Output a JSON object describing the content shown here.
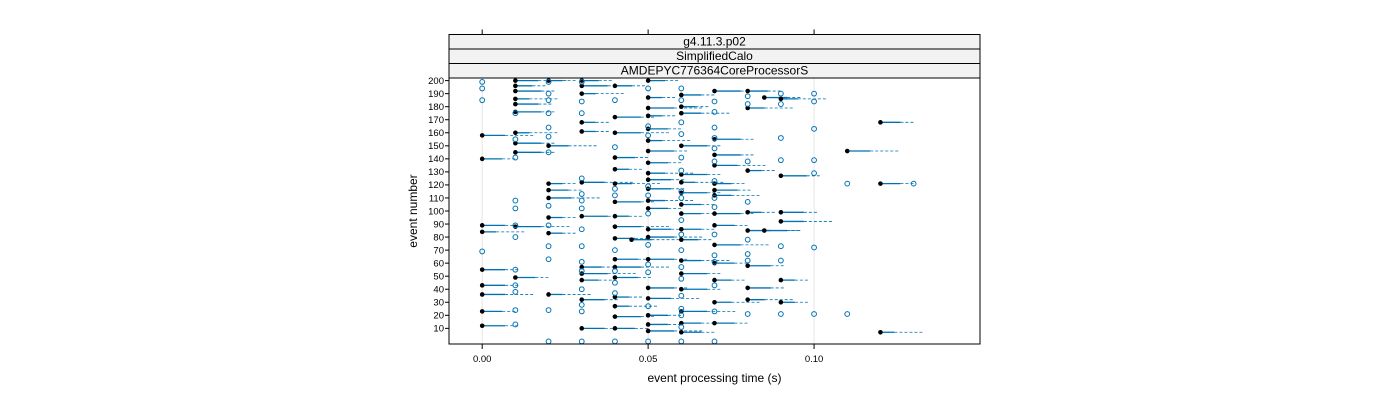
{
  "chart_data": {
    "type": "scatter",
    "strips": [
      "g4.11.3.p02",
      "SimplifiedCalo",
      "AMDEPYC776364CoreProcessorS"
    ],
    "xlabel": "event processing time (s)",
    "ylabel": "event number",
    "xlim": [
      -0.01,
      0.15
    ],
    "ylim": [
      -2,
      202
    ],
    "x_ticks": [
      0.0,
      0.05,
      0.1
    ],
    "x_tick_labels": [
      "0.00",
      "0.05",
      "0.10"
    ],
    "y_ticks": [
      10,
      20,
      30,
      40,
      50,
      60,
      70,
      80,
      90,
      100,
      110,
      120,
      130,
      140,
      150,
      160,
      170,
      180,
      190,
      200
    ],
    "y_tick_labels": [
      "10",
      "20",
      "30",
      "40",
      "50",
      "60",
      "70",
      "80",
      "90",
      "100",
      "110",
      "120",
      "130",
      "140",
      "150",
      "160",
      "170",
      "180",
      "190",
      "200"
    ],
    "grid": true,
    "colors": {
      "series_a": "#000000",
      "series_b": "#0072b2",
      "strip_bg": "#f2f2f2",
      "grid": "#e6e6e6"
    },
    "series": [
      {
        "marker": "filled-circle",
        "color": "#000000",
        "points": [
          [
            0.0,
            158
          ],
          [
            0.0,
            140
          ],
          [
            0.0,
            89
          ],
          [
            0.0,
            84
          ],
          [
            0.0,
            55
          ],
          [
            0.0,
            43
          ],
          [
            0.0,
            36
          ],
          [
            0.0,
            23
          ],
          [
            0.0,
            12
          ],
          [
            0.01,
            200
          ],
          [
            0.01,
            196
          ],
          [
            0.01,
            192
          ],
          [
            0.01,
            186
          ],
          [
            0.01,
            182
          ],
          [
            0.01,
            176
          ],
          [
            0.01,
            160
          ],
          [
            0.01,
            152
          ],
          [
            0.01,
            145
          ],
          [
            0.01,
            88
          ],
          [
            0.01,
            49
          ],
          [
            0.02,
            200
          ],
          [
            0.02,
            150
          ],
          [
            0.02,
            121
          ],
          [
            0.02,
            116
          ],
          [
            0.02,
            110
          ],
          [
            0.02,
            95
          ],
          [
            0.02,
            83
          ],
          [
            0.02,
            36
          ],
          [
            0.03,
            200
          ],
          [
            0.03,
            196
          ],
          [
            0.03,
            190
          ],
          [
            0.03,
            168
          ],
          [
            0.03,
            161
          ],
          [
            0.03,
            122
          ],
          [
            0.03,
            96
          ],
          [
            0.03,
            57
          ],
          [
            0.03,
            52
          ],
          [
            0.03,
            47
          ],
          [
            0.03,
            32
          ],
          [
            0.03,
            10
          ],
          [
            0.04,
            196
          ],
          [
            0.04,
            172
          ],
          [
            0.04,
            160
          ],
          [
            0.04,
            141
          ],
          [
            0.04,
            132
          ],
          [
            0.04,
            121
          ],
          [
            0.04,
            107
          ],
          [
            0.04,
            96
          ],
          [
            0.04,
            88
          ],
          [
            0.04,
            79
          ],
          [
            0.04,
            63
          ],
          [
            0.04,
            57
          ],
          [
            0.04,
            49
          ],
          [
            0.04,
            34
          ],
          [
            0.04,
            27
          ],
          [
            0.04,
            19
          ],
          [
            0.04,
            10
          ],
          [
            0.045,
            78
          ],
          [
            0.05,
            200
          ],
          [
            0.05,
            187
          ],
          [
            0.05,
            179
          ],
          [
            0.05,
            173
          ],
          [
            0.05,
            163
          ],
          [
            0.05,
            154
          ],
          [
            0.05,
            146
          ],
          [
            0.05,
            137
          ],
          [
            0.05,
            129
          ],
          [
            0.05,
            124
          ],
          [
            0.05,
            117
          ],
          [
            0.05,
            108
          ],
          [
            0.05,
            102
          ],
          [
            0.05,
            86
          ],
          [
            0.05,
            80
          ],
          [
            0.05,
            63
          ],
          [
            0.05,
            41
          ],
          [
            0.05,
            33
          ],
          [
            0.05,
            20
          ],
          [
            0.05,
            13
          ],
          [
            0.05,
            8
          ],
          [
            0.06,
            189
          ],
          [
            0.06,
            180
          ],
          [
            0.06,
            175
          ],
          [
            0.06,
            150
          ],
          [
            0.06,
            128
          ],
          [
            0.06,
            122
          ],
          [
            0.06,
            114
          ],
          [
            0.06,
            105
          ],
          [
            0.06,
            98
          ],
          [
            0.06,
            86
          ],
          [
            0.06,
            78
          ],
          [
            0.06,
            62
          ],
          [
            0.06,
            52
          ],
          [
            0.06,
            40
          ],
          [
            0.06,
            23
          ],
          [
            0.06,
            14
          ],
          [
            0.06,
            7
          ],
          [
            0.07,
            192
          ],
          [
            0.07,
            155
          ],
          [
            0.07,
            143
          ],
          [
            0.07,
            135
          ],
          [
            0.07,
            121
          ],
          [
            0.07,
            116
          ],
          [
            0.07,
            112
          ],
          [
            0.07,
            98
          ],
          [
            0.07,
            89
          ],
          [
            0.07,
            74
          ],
          [
            0.07,
            60
          ],
          [
            0.07,
            47
          ],
          [
            0.07,
            30
          ],
          [
            0.07,
            14
          ],
          [
            0.08,
            192
          ],
          [
            0.08,
            179
          ],
          [
            0.08,
            131
          ],
          [
            0.08,
            99
          ],
          [
            0.08,
            85
          ],
          [
            0.08,
            58
          ],
          [
            0.08,
            41
          ],
          [
            0.08,
            32
          ],
          [
            0.085,
            187
          ],
          [
            0.085,
            85
          ],
          [
            0.09,
            186
          ],
          [
            0.09,
            127
          ],
          [
            0.09,
            99
          ],
          [
            0.09,
            92
          ],
          [
            0.09,
            47
          ],
          [
            0.09,
            30
          ],
          [
            0.11,
            146
          ],
          [
            0.12,
            168
          ],
          [
            0.12,
            121
          ],
          [
            0.12,
            7
          ]
        ]
      },
      {
        "marker": "open-circle",
        "color": "#0072b2",
        "points": [
          [
            0.0,
            199
          ],
          [
            0.0,
            194
          ],
          [
            0.0,
            185
          ],
          [
            0.0,
            69
          ],
          [
            0.01,
            175
          ],
          [
            0.01,
            155
          ],
          [
            0.01,
            141
          ],
          [
            0.01,
            108
          ],
          [
            0.01,
            102
          ],
          [
            0.01,
            89
          ],
          [
            0.01,
            80
          ],
          [
            0.01,
            55
          ],
          [
            0.01,
            43
          ],
          [
            0.01,
            38
          ],
          [
            0.01,
            24
          ],
          [
            0.01,
            13
          ],
          [
            0.02,
            199
          ],
          [
            0.02,
            190
          ],
          [
            0.02,
            185
          ],
          [
            0.02,
            175
          ],
          [
            0.02,
            164
          ],
          [
            0.02,
            157
          ],
          [
            0.02,
            145
          ],
          [
            0.02,
            104
          ],
          [
            0.02,
            89
          ],
          [
            0.02,
            73
          ],
          [
            0.02,
            63
          ],
          [
            0.02,
            24
          ],
          [
            0.02,
            0
          ],
          [
            0.03,
            199
          ],
          [
            0.03,
            184
          ],
          [
            0.03,
            175
          ],
          [
            0.03,
            125
          ],
          [
            0.03,
            113
          ],
          [
            0.03,
            108
          ],
          [
            0.03,
            102
          ],
          [
            0.03,
            86
          ],
          [
            0.03,
            73
          ],
          [
            0.03,
            61
          ],
          [
            0.03,
            54
          ],
          [
            0.03,
            40
          ],
          [
            0.03,
            28
          ],
          [
            0.03,
            23
          ],
          [
            0.03,
            0
          ],
          [
            0.04,
            185
          ],
          [
            0.04,
            149
          ],
          [
            0.04,
            117
          ],
          [
            0.04,
            112
          ],
          [
            0.04,
            70
          ],
          [
            0.04,
            54
          ],
          [
            0.04,
            45
          ],
          [
            0.04,
            37
          ],
          [
            0.04,
            0
          ],
          [
            0.05,
            194
          ],
          [
            0.05,
            165
          ],
          [
            0.05,
            158
          ],
          [
            0.05,
            119
          ],
          [
            0.05,
            112
          ],
          [
            0.05,
            98
          ],
          [
            0.05,
            74
          ],
          [
            0.05,
            59
          ],
          [
            0.05,
            53
          ],
          [
            0.05,
            27
          ],
          [
            0.05,
            0
          ],
          [
            0.06,
            194
          ],
          [
            0.06,
            185
          ],
          [
            0.06,
            168
          ],
          [
            0.06,
            159
          ],
          [
            0.06,
            141
          ],
          [
            0.06,
            131
          ],
          [
            0.06,
            115
          ],
          [
            0.06,
            110
          ],
          [
            0.06,
            93
          ],
          [
            0.06,
            82
          ],
          [
            0.06,
            70
          ],
          [
            0.06,
            57
          ],
          [
            0.06,
            48
          ],
          [
            0.06,
            35
          ],
          [
            0.06,
            25
          ],
          [
            0.06,
            20
          ],
          [
            0.06,
            11
          ],
          [
            0.06,
            0
          ],
          [
            0.07,
            184
          ],
          [
            0.07,
            176
          ],
          [
            0.07,
            164
          ],
          [
            0.07,
            156
          ],
          [
            0.07,
            148
          ],
          [
            0.07,
            138
          ],
          [
            0.07,
            123
          ],
          [
            0.07,
            110
          ],
          [
            0.07,
            103
          ],
          [
            0.07,
            82
          ],
          [
            0.07,
            66
          ],
          [
            0.07,
            61
          ],
          [
            0.07,
            43
          ],
          [
            0.07,
            23
          ],
          [
            0.07,
            0
          ],
          [
            0.08,
            188
          ],
          [
            0.08,
            182
          ],
          [
            0.08,
            138
          ],
          [
            0.08,
            107
          ],
          [
            0.08,
            78
          ],
          [
            0.08,
            67
          ],
          [
            0.08,
            62
          ],
          [
            0.08,
            21
          ],
          [
            0.09,
            190
          ],
          [
            0.09,
            182
          ],
          [
            0.09,
            156
          ],
          [
            0.09,
            139
          ],
          [
            0.09,
            73
          ],
          [
            0.09,
            62
          ],
          [
            0.09,
            21
          ],
          [
            0.1,
            190
          ],
          [
            0.1,
            184
          ],
          [
            0.1,
            163
          ],
          [
            0.1,
            139
          ],
          [
            0.1,
            129
          ],
          [
            0.1,
            72
          ],
          [
            0.1,
            21
          ],
          [
            0.11,
            121
          ],
          [
            0.11,
            21
          ],
          [
            0.13,
            121
          ]
        ]
      }
    ]
  }
}
